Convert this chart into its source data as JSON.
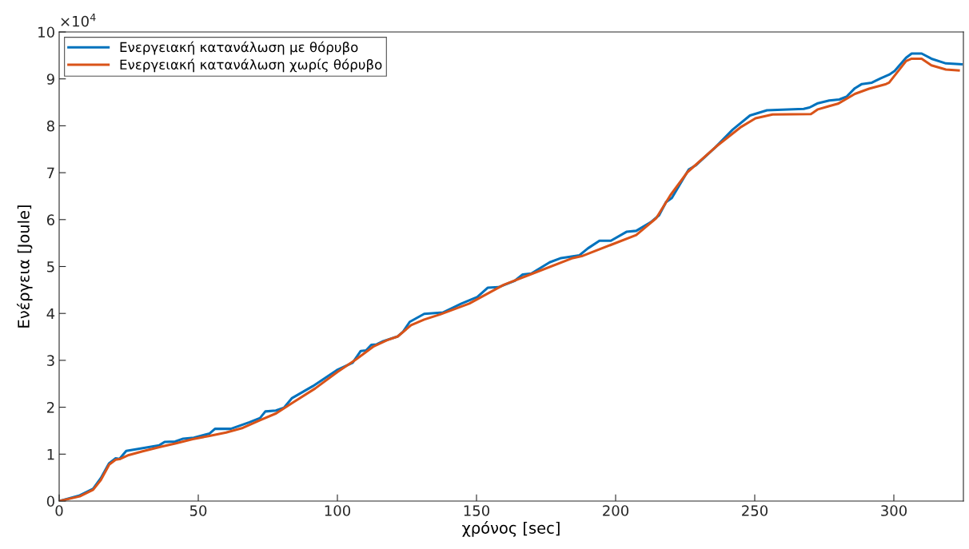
{
  "chart_data": {
    "type": "line",
    "xlabel": "χρόνος [sec]",
    "ylabel": "Ενέργεια [Joule]",
    "annotations": [
      "×10$^{4}$"
    ],
    "xlim": [
      0,
      325
    ],
    "xticks": [
      0,
      50,
      100,
      150,
      200,
      250,
      300
    ],
    "ylim": [
      0,
      10
    ],
    "yticks": [
      0,
      1,
      2,
      3,
      4,
      5,
      6,
      7,
      8,
      9,
      10
    ],
    "grid": false,
    "legend": "top left",
    "marker": "none",
    "line_style": "solid",
    "series": [
      {
        "name": "Ενεργειακή κατανάλωση με θόρυβο",
        "color": "#0072bd",
        "x": [
          0,
          7.4,
          12.2,
          15,
          17.9,
          20.3,
          21.7,
          24.1,
          28.4,
          36,
          37.9,
          41.7,
          44.6,
          48.4,
          54.1,
          56,
          61.7,
          68.4,
          72.2,
          74.1,
          77.9,
          80.8,
          83.6,
          91.2,
          99.8,
          105.5,
          108.4,
          110.3,
          112.2,
          114.1,
          116.5,
          121.7,
          123.6,
          126,
          131.2,
          137.9,
          144.6,
          150.3,
          154.1,
          157.9,
          163.6,
          166.6,
          169.7,
          176.3,
          180.4,
          187,
          190.1,
          194.2,
          198.3,
          203.9,
          207.4,
          212.5,
          215.6,
          218.1,
          220.2,
          226.3,
          228.9,
          236,
          242.1,
          248.3,
          254.4,
          267.6,
          269.7,
          272.7,
          276.8,
          280.4,
          283,
          286,
          288.5,
          292.1,
          295.2,
          298.3,
          300.3,
          304.4,
          306.4,
          310,
          313.5,
          318.7,
          324.3
        ],
        "values": [
          0,
          0.12,
          0.26,
          0.49,
          0.8,
          0.91,
          0.9,
          1.07,
          1.11,
          1.19,
          1.26,
          1.27,
          1.33,
          1.35,
          1.44,
          1.54,
          1.54,
          1.68,
          1.77,
          1.91,
          1.93,
          1.99,
          2.19,
          2.45,
          2.79,
          2.95,
          3.2,
          3.21,
          3.33,
          3.34,
          3.41,
          3.51,
          3.61,
          3.82,
          3.99,
          4.02,
          4.21,
          4.35,
          4.55,
          4.56,
          4.69,
          4.83,
          4.85,
          5.09,
          5.18,
          5.24,
          5.39,
          5.55,
          5.55,
          5.74,
          5.76,
          5.94,
          6.09,
          6.37,
          6.46,
          7.07,
          7.16,
          7.55,
          7.92,
          8.22,
          8.33,
          8.36,
          8.39,
          8.48,
          8.54,
          8.56,
          8.62,
          8.8,
          8.89,
          8.92,
          9.01,
          9.09,
          9.17,
          9.45,
          9.54,
          9.54,
          9.43,
          9.33,
          9.31
        ]
      },
      {
        "name": "Ενεργειακή κατανάλωση χωρίς θόρυβο",
        "color": "#d95319",
        "x": [
          0,
          7.4,
          12.2,
          15,
          18,
          20.3,
          22,
          25,
          30,
          36,
          42,
          48,
          54,
          60,
          66,
          72,
          78,
          84,
          92,
          100,
          106.5,
          113.1,
          117.9,
          121.7,
          126.5,
          131.2,
          137,
          147.4,
          159.8,
          169.3,
          184.6,
          187.8,
          207.4,
          214.6,
          219.7,
          225.8,
          236,
          245.2,
          250.3,
          256.4,
          270.2,
          272.7,
          276.8,
          279.9,
          286,
          291.1,
          297.2,
          298.3,
          304.4,
          306.4,
          310,
          313.5,
          318.7,
          323.3
        ],
        "values": [
          0,
          0.1,
          0.24,
          0.45,
          0.78,
          0.88,
          0.9,
          0.98,
          1.06,
          1.15,
          1.23,
          1.32,
          1.39,
          1.46,
          1.56,
          1.72,
          1.87,
          2.1,
          2.4,
          2.75,
          3.01,
          3.3,
          3.43,
          3.51,
          3.75,
          3.87,
          3.98,
          4.21,
          4.61,
          4.83,
          5.18,
          5.22,
          5.67,
          6.03,
          6.52,
          7.01,
          7.55,
          7.98,
          8.16,
          8.24,
          8.25,
          8.35,
          8.42,
          8.47,
          8.68,
          8.79,
          8.89,
          8.92,
          9.38,
          9.43,
          9.43,
          9.29,
          9.2,
          9.18
        ]
      }
    ]
  }
}
